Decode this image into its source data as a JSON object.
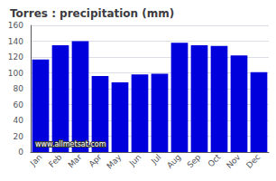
{
  "chart_data": {
    "type": "bar",
    "title": "Torres : precipitation (mm)",
    "categories": [
      "Jan",
      "Feb",
      "Mar",
      "Apr",
      "May",
      "Jun",
      "Jul",
      "Aug",
      "Sep",
      "Oct",
      "Nov",
      "Dec"
    ],
    "values": [
      117,
      135,
      140,
      96,
      88,
      98,
      99,
      138,
      135,
      134,
      122,
      101
    ],
    "color": "#0000dd",
    "ylim": [
      0,
      160
    ],
    "yticks": [
      0,
      20,
      40,
      60,
      80,
      100,
      120,
      140,
      160
    ],
    "grid": true,
    "annotations": [
      "www.allmetsat.com"
    ]
  }
}
